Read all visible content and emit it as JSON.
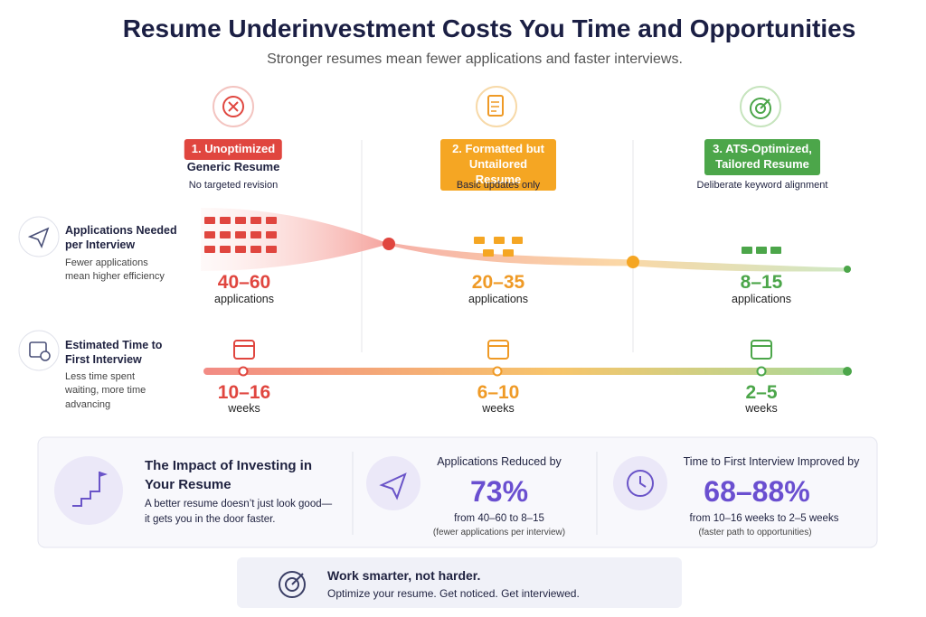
{
  "header": {
    "title": "Resume Underinvestment Costs You Time and Opportunities",
    "subtitle": "Stronger resumes mean fewer applications and faster interviews."
  },
  "stages": [
    {
      "badge": "1. Unoptimized",
      "title": "Generic Resume",
      "note": "No targeted revision",
      "applications": {
        "value": "40–60",
        "unit": "applications"
      },
      "time": {
        "value": "10–16",
        "unit": "weeks"
      }
    },
    {
      "badge": "2. Formatted but Untailored Resume",
      "note": "Basic updates only",
      "applications": {
        "value": "20–35",
        "unit": "applications"
      },
      "time": {
        "value": "6–10",
        "unit": "weeks"
      }
    },
    {
      "badge": "3. ATS-Optimized, Tailored Resume",
      "note": "Deliberate keyword alignment",
      "applications": {
        "value": "8–15",
        "unit": "applications"
      },
      "time": {
        "value": "2–5",
        "unit": "weeks"
      }
    }
  ],
  "rows": [
    {
      "title": "Applications Needed per Interview",
      "note": "Fewer applications mean higher efficiency"
    },
    {
      "title": "Estimated Time to First Interview",
      "note": "Less time spent waiting, more time advancing"
    }
  ],
  "impact": {
    "title": "The Impact of Investing in Your Resume",
    "text": "A better resume doesn’t just look good— it gets you in the door faster.",
    "metrics": [
      {
        "label": "Applications Reduced by",
        "value": "73%",
        "detail": "from 40–60 to 8–15",
        "note": "(fewer applications per interview)"
      },
      {
        "label": "Time to First Interview Improved by",
        "value": "68–88%",
        "detail": "from 10–16 weeks to 2–5 weeks",
        "note": "(faster path to opportunities)"
      }
    ]
  },
  "footer": {
    "title": "Work smarter, not harder.",
    "text": "Optimize your resume. Get noticed. Get interviewed."
  }
}
